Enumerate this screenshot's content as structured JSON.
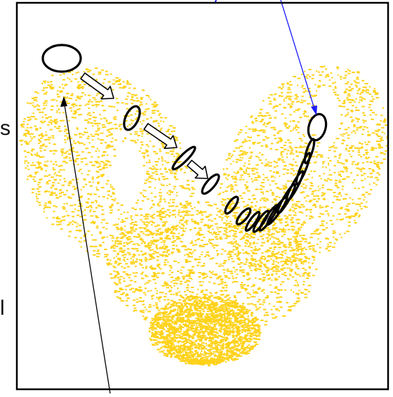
{
  "figure": {
    "description_colors": {
      "attractor": "#ffd21a",
      "frame": "#000000",
      "ellipses": "#000000",
      "arrow_fill": "#ffffff",
      "pointer_blue": "#1a1aff",
      "pointer_black": "#000000"
    },
    "side_fragments": {
      "upper": "s",
      "lower": "l"
    }
  }
}
